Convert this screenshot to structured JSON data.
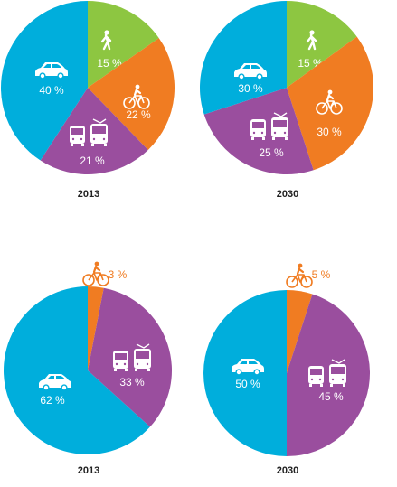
{
  "colors": {
    "walk": "#8dc641",
    "bike": "#f07c22",
    "transit": "#9a4e9e",
    "car": "#00aedc"
  },
  "chart_data": [
    {
      "type": "pie",
      "label": "2013",
      "slices": [
        {
          "category": "walk",
          "icon": "pedestrian-icon",
          "value": 15,
          "text": "15 %"
        },
        {
          "category": "bike",
          "icon": "bicycle-icon",
          "value": 22,
          "text": "22 %"
        },
        {
          "category": "transit",
          "icon": "bus-tram-icon",
          "value": 21,
          "text": "21 %"
        },
        {
          "category": "car",
          "icon": "car-icon",
          "value": 40,
          "text": "40 %"
        }
      ]
    },
    {
      "type": "pie",
      "label": "2030",
      "slices": [
        {
          "category": "walk",
          "icon": "pedestrian-icon",
          "value": 15,
          "text": "15 %"
        },
        {
          "category": "bike",
          "icon": "bicycle-icon",
          "value": 30,
          "text": "30 %"
        },
        {
          "category": "transit",
          "icon": "bus-tram-icon",
          "value": 25,
          "text": "25 %"
        },
        {
          "category": "car",
          "icon": "car-icon",
          "value": 30,
          "text": "30 %"
        }
      ]
    },
    {
      "type": "pie",
      "label": "2013",
      "slices": [
        {
          "category": "bike",
          "icon": "bicycle-icon",
          "value": 3,
          "text": "3 %"
        },
        {
          "category": "transit",
          "icon": "bus-tram-icon",
          "value": 33,
          "text": "33 %"
        },
        {
          "category": "car",
          "icon": "car-icon",
          "value": 62,
          "text": "62 %"
        }
      ]
    },
    {
      "type": "pie",
      "label": "2030",
      "slices": [
        {
          "category": "bike",
          "icon": "bicycle-icon",
          "value": 5,
          "text": "5 %"
        },
        {
          "category": "transit",
          "icon": "bus-tram-icon",
          "value": 45,
          "text": "45 %"
        },
        {
          "category": "car",
          "icon": "car-icon",
          "value": 50,
          "text": "50 %"
        }
      ]
    }
  ]
}
